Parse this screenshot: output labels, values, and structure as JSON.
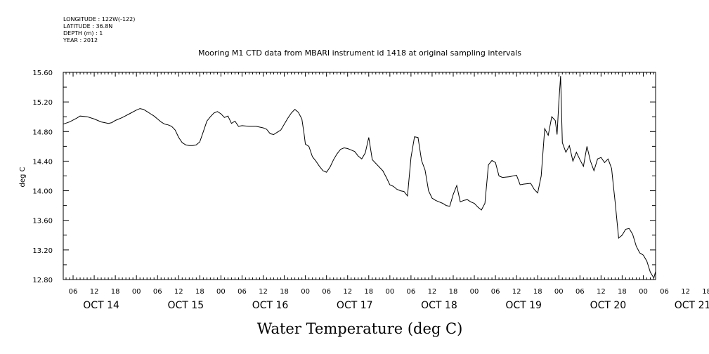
{
  "chart_data": {
    "type": "line",
    "meta": {
      "longitude": "LONGITUDE : 122W(-122)",
      "latitude": "LATITUDE : 36.8N",
      "depth": "DEPTH (m) : 1",
      "year": "YEAR : 2012"
    },
    "title": "Mooring M1 CTD data from MBARI instrument id 1418 at original sampling intervals",
    "xlabel": "Water Temperature (deg C)",
    "ylabel": "deg C",
    "ylim": [
      12.8,
      15.6
    ],
    "y_ticks": [
      "15.60",
      "15.20",
      "14.80",
      "14.40",
      "14.00",
      "13.60",
      "13.20",
      "12.80"
    ],
    "x_start": "2012-10-13 00:00",
    "xlim_hours": [
      3.2,
      171.5
    ],
    "x_hour_ticks": [
      "06",
      "12",
      "18",
      "00",
      "06",
      "12",
      "18",
      "00",
      "06",
      "12",
      "18",
      "00",
      "06",
      "12",
      "18",
      "00",
      "06",
      "12",
      "18",
      "00",
      "06",
      "12",
      "18",
      "00",
      "06",
      "12",
      "18",
      "00",
      "06",
      "12",
      "18",
      "00"
    ],
    "x_date_labels": [
      "OCT 14",
      "OCT 15",
      "OCT 16",
      "OCT 17",
      "OCT 18",
      "OCT 19",
      "OCT 20",
      "OCT 21"
    ],
    "grid": false,
    "series": [
      {
        "points": [
          [
            3.2,
            14.9
          ],
          [
            5,
            14.93
          ],
          [
            7,
            14.98
          ],
          [
            8,
            15.01
          ],
          [
            10,
            15.0
          ],
          [
            12,
            14.97
          ],
          [
            14,
            14.93
          ],
          [
            15,
            14.92
          ],
          [
            16,
            14.91
          ],
          [
            17,
            14.92
          ],
          [
            18,
            14.95
          ],
          [
            20,
            14.99
          ],
          [
            22,
            15.04
          ],
          [
            24,
            15.09
          ],
          [
            25,
            15.11
          ],
          [
            26,
            15.1
          ],
          [
            27,
            15.07
          ],
          [
            28,
            15.04
          ],
          [
            29,
            15.01
          ],
          [
            30,
            14.97
          ],
          [
            31,
            14.93
          ],
          [
            32,
            14.9
          ],
          [
            33,
            14.89
          ],
          [
            34,
            14.87
          ],
          [
            35,
            14.82
          ],
          [
            36,
            14.72
          ],
          [
            37,
            14.65
          ],
          [
            38,
            14.62
          ],
          [
            39,
            14.61
          ],
          [
            40,
            14.61
          ],
          [
            41,
            14.62
          ],
          [
            42,
            14.66
          ],
          [
            43,
            14.8
          ],
          [
            44,
            14.94
          ],
          [
            45,
            15.0
          ],
          [
            46,
            15.05
          ],
          [
            47,
            15.07
          ],
          [
            48,
            15.04
          ],
          [
            49,
            14.99
          ],
          [
            50,
            15.01
          ],
          [
            51,
            14.91
          ],
          [
            52,
            14.94
          ],
          [
            53,
            14.87
          ],
          [
            54,
            14.88
          ],
          [
            56,
            14.87
          ],
          [
            58,
            14.87
          ],
          [
            60,
            14.85
          ],
          [
            61,
            14.83
          ],
          [
            62,
            14.77
          ],
          [
            63,
            14.76
          ],
          [
            64,
            14.79
          ],
          [
            65,
            14.82
          ],
          [
            66,
            14.9
          ],
          [
            67,
            14.98
          ],
          [
            68,
            15.05
          ],
          [
            69,
            15.1
          ],
          [
            70,
            15.06
          ],
          [
            71,
            14.97
          ],
          [
            71.6,
            14.78
          ],
          [
            72,
            14.63
          ],
          [
            73,
            14.6
          ],
          [
            74,
            14.46
          ],
          [
            75,
            14.4
          ],
          [
            76,
            14.33
          ],
          [
            77,
            14.27
          ],
          [
            78,
            14.25
          ],
          [
            79,
            14.32
          ],
          [
            80,
            14.42
          ],
          [
            81,
            14.5
          ],
          [
            82,
            14.56
          ],
          [
            83,
            14.58
          ],
          [
            84,
            14.57
          ],
          [
            85,
            14.55
          ],
          [
            86,
            14.53
          ],
          [
            87,
            14.47
          ],
          [
            88,
            14.43
          ],
          [
            89,
            14.51
          ],
          [
            90,
            14.72
          ],
          [
            91,
            14.42
          ],
          [
            92,
            14.37
          ],
          [
            93,
            14.32
          ],
          [
            94,
            14.27
          ],
          [
            95,
            14.18
          ],
          [
            96,
            14.08
          ],
          [
            97,
            14.06
          ],
          [
            98,
            14.02
          ],
          [
            99,
            14.0
          ],
          [
            100,
            13.99
          ],
          [
            101,
            13.93
          ],
          [
            102,
            14.45
          ],
          [
            103,
            14.73
          ],
          [
            104,
            14.72
          ],
          [
            105,
            14.41
          ],
          [
            106,
            14.28
          ],
          [
            107,
            14.0
          ],
          [
            108,
            13.9
          ],
          [
            109,
            13.87
          ],
          [
            110,
            13.85
          ],
          [
            111,
            13.83
          ],
          [
            112,
            13.8
          ],
          [
            113,
            13.79
          ],
          [
            114,
            13.95
          ],
          [
            115,
            14.07
          ],
          [
            116,
            13.85
          ],
          [
            117,
            13.87
          ],
          [
            118,
            13.88
          ],
          [
            119,
            13.85
          ],
          [
            120,
            13.83
          ],
          [
            121,
            13.78
          ],
          [
            122,
            13.74
          ],
          [
            123,
            13.83
          ],
          [
            124,
            14.35
          ],
          [
            125,
            14.41
          ],
          [
            126,
            14.38
          ],
          [
            127,
            14.2
          ],
          [
            128,
            14.18
          ],
          [
            130,
            14.19
          ],
          [
            132,
            14.21
          ],
          [
            133,
            14.08
          ],
          [
            134,
            14.09
          ],
          [
            136,
            14.1
          ],
          [
            137,
            14.02
          ],
          [
            138,
            13.97
          ],
          [
            139,
            14.2
          ],
          [
            140,
            14.84
          ],
          [
            141,
            14.75
          ],
          [
            142,
            15.0
          ],
          [
            143,
            14.95
          ],
          [
            143.5,
            14.76
          ],
          [
            144,
            15.2
          ],
          [
            144.5,
            15.55
          ],
          [
            145,
            14.65
          ],
          [
            146,
            14.52
          ],
          [
            147,
            14.61
          ],
          [
            148,
            14.4
          ],
          [
            149,
            14.52
          ],
          [
            150,
            14.42
          ],
          [
            151,
            14.33
          ],
          [
            152,
            14.6
          ],
          [
            153,
            14.4
          ],
          [
            154,
            14.27
          ],
          [
            155,
            14.43
          ],
          [
            156,
            14.45
          ],
          [
            157,
            14.38
          ],
          [
            158,
            14.43
          ],
          [
            159,
            14.3
          ],
          [
            159.5,
            14.07
          ],
          [
            160,
            13.85
          ],
          [
            161,
            13.36
          ],
          [
            162,
            13.4
          ],
          [
            163,
            13.48
          ],
          [
            164,
            13.49
          ],
          [
            165,
            13.41
          ],
          [
            166,
            13.25
          ],
          [
            167,
            13.16
          ],
          [
            168,
            13.13
          ],
          [
            169,
            13.05
          ],
          [
            170,
            12.9
          ],
          [
            171,
            12.82
          ],
          [
            171.5,
            12.91
          ]
        ]
      }
    ]
  }
}
